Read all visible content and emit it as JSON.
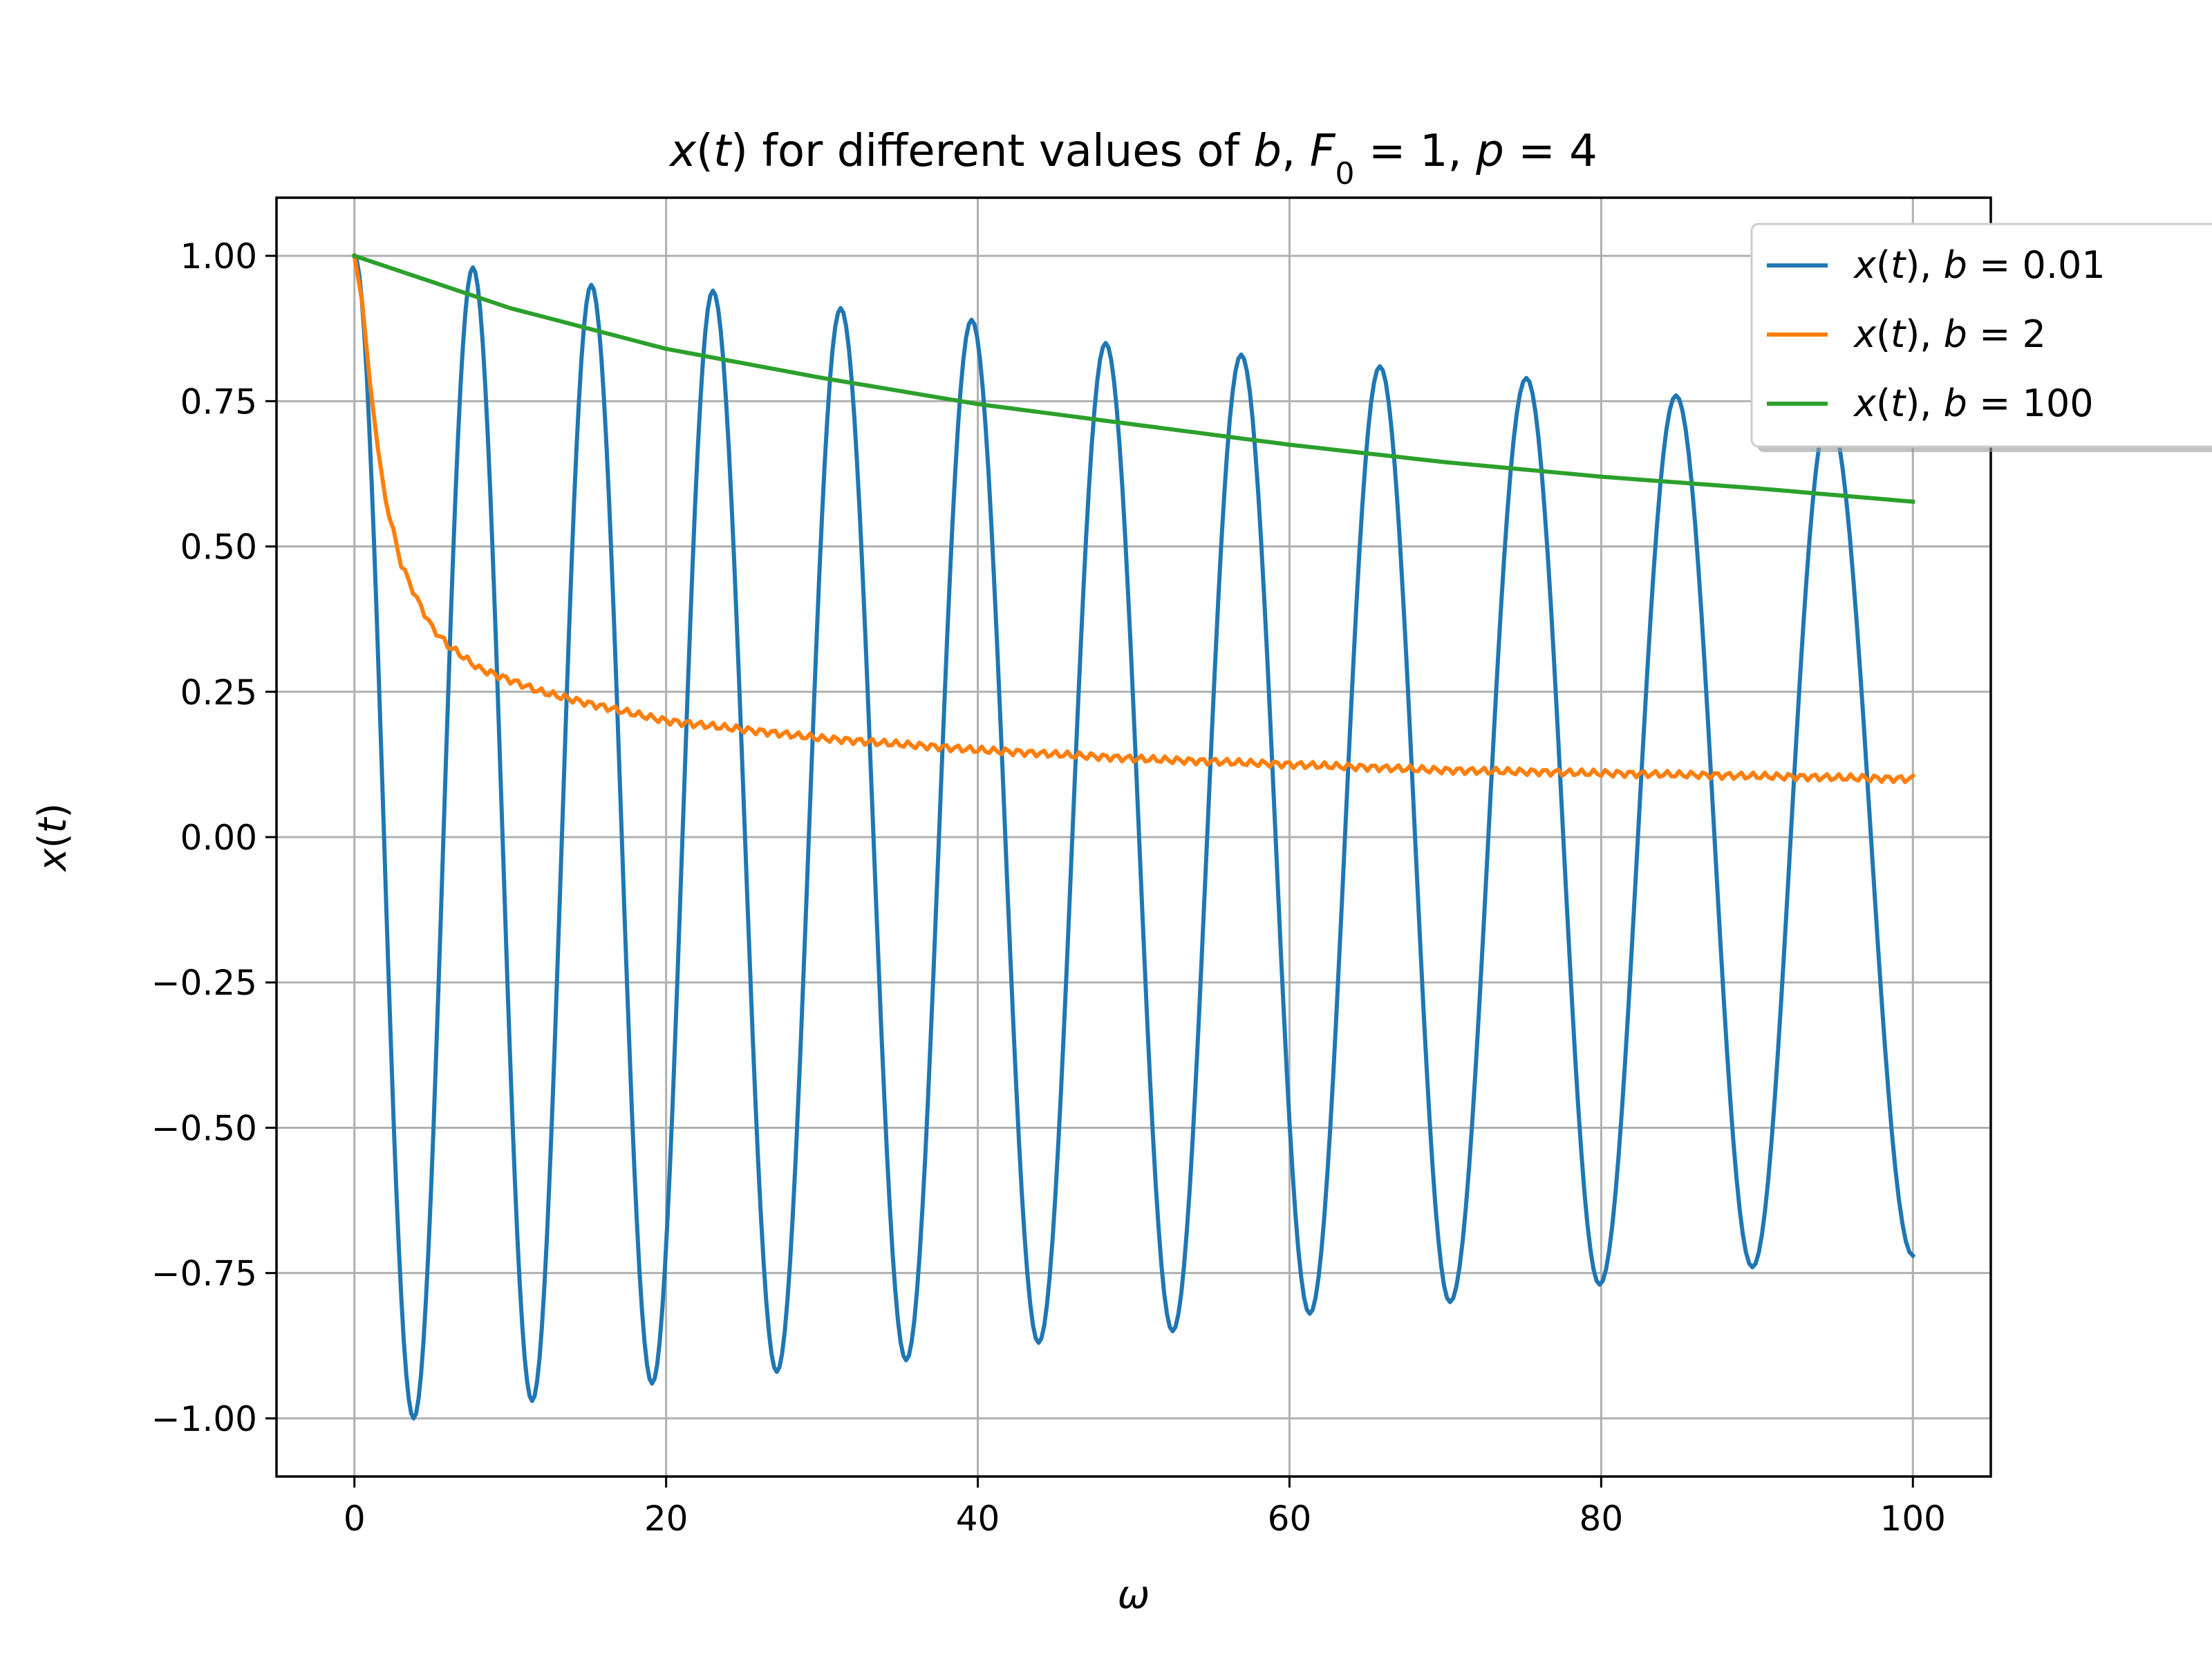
{
  "chart_data": {
    "type": "line",
    "title": {
      "parts": [
        {
          "t": "x",
          "i": true
        },
        {
          "t": "(",
          "i": false
        },
        {
          "t": "t",
          "i": true
        },
        {
          "t": ") for different values of ",
          "i": false
        },
        {
          "t": "b",
          "i": true
        },
        {
          "t": ", ",
          "i": false
        },
        {
          "t": "F",
          "i": true
        },
        {
          "t": "0",
          "i": false,
          "sub": true
        },
        {
          "t": " = 1, ",
          "i": false
        },
        {
          "t": "p",
          "i": true
        },
        {
          "t": " = 4",
          "i": false
        }
      ],
      "text": "x(t) for different values of b, F0 = 1, p = 4"
    },
    "xlabel": "ω",
    "ylabel": "x(t)",
    "xlim": [
      -5,
      105
    ],
    "ylim": [
      -1.1,
      1.1
    ],
    "xticks": [
      0,
      20,
      40,
      60,
      80,
      100
    ],
    "xtick_labels": [
      "0",
      "20",
      "40",
      "60",
      "80",
      "100"
    ],
    "yticks": [
      1.0,
      0.75,
      0.5,
      0.25,
      0.0,
      -0.25,
      -0.5,
      -0.75,
      -1.0
    ],
    "ytick_labels": [
      "1.00",
      "0.75",
      "0.50",
      "0.25",
      "0.00",
      "−0.25",
      "−0.50",
      "−0.75",
      "−1.00"
    ],
    "grid": true,
    "legend_position": "upper-right (partially clipped)",
    "series": [
      {
        "name": "x(t), b = 0.01",
        "legend_parts": [
          {
            "t": "x",
            "i": true
          },
          {
            "t": "(",
            "i": false
          },
          {
            "t": "t",
            "i": true
          },
          {
            "t": "), ",
            "i": false
          },
          {
            "t": "b",
            "i": true
          },
          {
            "t": " = 0.01",
            "i": false
          }
        ],
        "color": "#1f77b4",
        "x": [
          0,
          3.8,
          7.6,
          11.4,
          15.2,
          19.1,
          23.0,
          27.1,
          31.2,
          35.4,
          39.6,
          43.9,
          48.2,
          52.5,
          56.9,
          61.3,
          65.8,
          70.3,
          75.2,
          79.9,
          84.8,
          89.7,
          94.6,
          100
        ],
        "y": [
          1.0,
          -1.0,
          0.98,
          -0.97,
          0.95,
          -0.94,
          0.94,
          -0.92,
          0.91,
          -0.9,
          0.89,
          -0.87,
          0.85,
          -0.85,
          0.83,
          -0.82,
          0.81,
          -0.8,
          0.79,
          -0.77,
          0.76,
          -0.74,
          0.73,
          -0.72
        ]
      },
      {
        "name": "x(t), b = 2",
        "legend_parts": [
          {
            "t": "x",
            "i": true
          },
          {
            "t": "(",
            "i": false
          },
          {
            "t": "t",
            "i": true
          },
          {
            "t": "), ",
            "i": false
          },
          {
            "t": "b",
            "i": true
          },
          {
            "t": " = 2",
            "i": false
          }
        ],
        "color": "#ff7f0e",
        "x": [
          0,
          0.5,
          1,
          1.5,
          2,
          3,
          4,
          5,
          6,
          8,
          10,
          12,
          15,
          20,
          25,
          30,
          35,
          40,
          50,
          60,
          70,
          80,
          90,
          100
        ],
        "y": [
          1.0,
          0.92,
          0.78,
          0.67,
          0.58,
          0.47,
          0.41,
          0.36,
          0.33,
          0.29,
          0.27,
          0.25,
          0.23,
          0.2,
          0.185,
          0.17,
          0.16,
          0.15,
          0.135,
          0.125,
          0.115,
          0.11,
          0.105,
          0.1
        ]
      },
      {
        "name": "x(t), b = 100",
        "legend_parts": [
          {
            "t": "x",
            "i": true
          },
          {
            "t": "(",
            "i": false
          },
          {
            "t": "t",
            "i": true
          },
          {
            "t": "), ",
            "i": false
          },
          {
            "t": "b",
            "i": true
          },
          {
            "t": " = 100",
            "i": false
          }
        ],
        "color": "#2ca02c",
        "x": [
          0,
          10,
          20,
          30,
          40,
          50,
          60,
          70,
          80,
          90,
          100
        ],
        "y": [
          1.0,
          0.91,
          0.84,
          0.79,
          0.745,
          0.71,
          0.675,
          0.645,
          0.62,
          0.6,
          0.577
        ]
      }
    ]
  }
}
